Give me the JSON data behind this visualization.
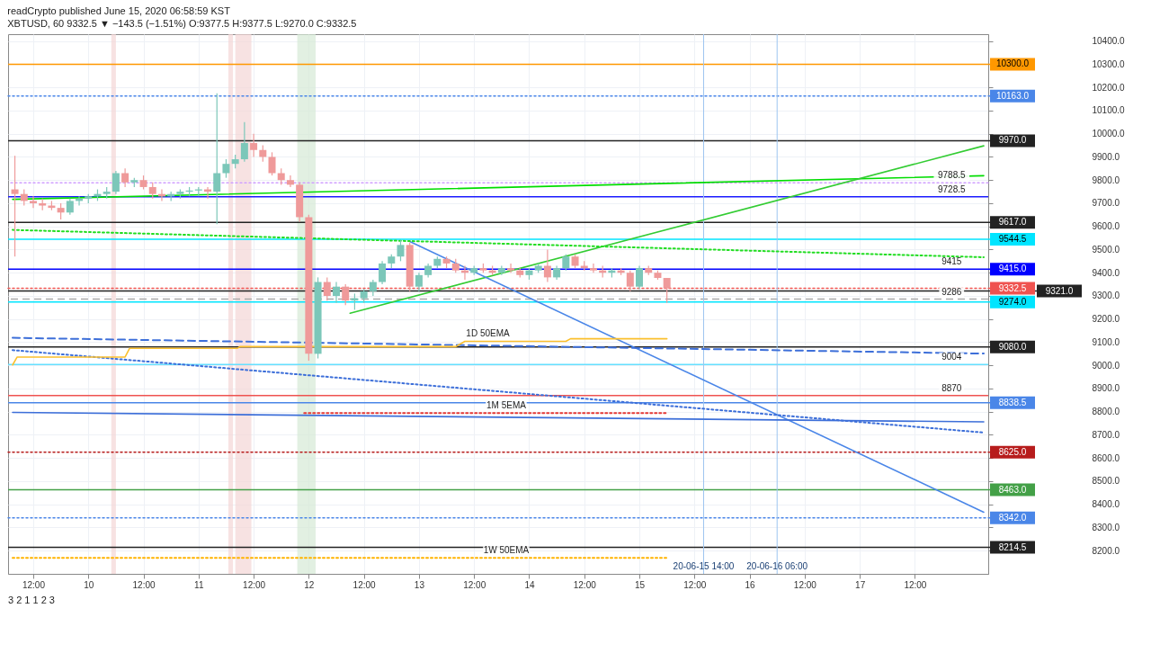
{
  "chart_data": {
    "type": "candlestick",
    "title": "readCrypto published June 15, 2020 06:58:59 KST",
    "subtitle": "XBTUSD, 60 9332.5 ▼ −143.5 (−1.51%) O:9377.5 H:9377.5 L:9270.0 C:9332.5",
    "x": [
      "2020-06-09T08:00",
      "2020-06-09T10:00",
      "2020-06-09T12:00",
      "2020-06-09T14:00",
      "2020-06-09T16:00",
      "2020-06-09T18:00",
      "2020-06-09T20:00",
      "2020-06-09T22:00",
      "2020-06-10T00:00",
      "2020-06-10T02:00",
      "2020-06-10T04:00",
      "2020-06-10T06:00",
      "2020-06-10T08:00",
      "2020-06-10T10:00",
      "2020-06-10T12:00",
      "2020-06-10T14:00",
      "2020-06-10T16:00",
      "2020-06-10T18:00",
      "2020-06-10T20:00",
      "2020-06-10T22:00",
      "2020-06-11T00:00",
      "2020-06-11T02:00",
      "2020-06-11T04:00",
      "2020-06-11T06:00",
      "2020-06-11T08:00",
      "2020-06-11T10:00",
      "2020-06-11T12:00",
      "2020-06-11T14:00",
      "2020-06-11T16:00",
      "2020-06-11T18:00",
      "2020-06-11T20:00",
      "2020-06-11T22:00",
      "2020-06-12T00:00",
      "2020-06-12T02:00",
      "2020-06-12T04:00",
      "2020-06-12T06:00",
      "2020-06-12T08:00",
      "2020-06-12T10:00",
      "2020-06-12T12:00",
      "2020-06-12T14:00",
      "2020-06-12T16:00",
      "2020-06-12T18:00",
      "2020-06-12T20:00",
      "2020-06-12T22:00",
      "2020-06-13T00:00",
      "2020-06-13T02:00",
      "2020-06-13T04:00",
      "2020-06-13T06:00",
      "2020-06-13T08:00",
      "2020-06-13T10:00",
      "2020-06-13T12:00",
      "2020-06-13T14:00",
      "2020-06-13T16:00",
      "2020-06-13T18:00",
      "2020-06-13T20:00",
      "2020-06-13T22:00",
      "2020-06-14T00:00",
      "2020-06-14T02:00",
      "2020-06-14T04:00",
      "2020-06-14T06:00",
      "2020-06-14T08:00",
      "2020-06-14T10:00",
      "2020-06-14T12:00",
      "2020-06-14T14:00",
      "2020-06-14T16:00",
      "2020-06-14T18:00",
      "2020-06-14T20:00",
      "2020-06-14T22:00",
      "2020-06-15T00:00",
      "2020-06-15T02:00",
      "2020-06-15T04:00",
      "2020-06-15T06:00"
    ],
    "ohlc": [
      [
        9760,
        9905,
        9470,
        9740
      ],
      [
        9740,
        9760,
        9690,
        9710
      ],
      [
        9710,
        9730,
        9680,
        9700
      ],
      [
        9700,
        9720,
        9670,
        9690
      ],
      [
        9690,
        9710,
        9670,
        9680
      ],
      [
        9680,
        9700,
        9630,
        9660
      ],
      [
        9660,
        9720,
        9650,
        9710
      ],
      [
        9710,
        9730,
        9690,
        9720
      ],
      [
        9720,
        9740,
        9700,
        9730
      ],
      [
        9730,
        9760,
        9710,
        9740
      ],
      [
        9740,
        9770,
        9720,
        9750
      ],
      [
        9750,
        9840,
        9740,
        9830
      ],
      [
        9830,
        9850,
        9770,
        9790
      ],
      [
        9790,
        9810,
        9770,
        9800
      ],
      [
        9800,
        9820,
        9760,
        9770
      ],
      [
        9770,
        9790,
        9720,
        9740
      ],
      [
        9740,
        9760,
        9710,
        9730
      ],
      [
        9730,
        9750,
        9710,
        9740
      ],
      [
        9740,
        9760,
        9720,
        9750
      ],
      [
        9750,
        9770,
        9730,
        9755
      ],
      [
        9755,
        9770,
        9730,
        9760
      ],
      [
        9760,
        9770,
        9720,
        9750
      ],
      [
        9750,
        10175,
        9610,
        9830
      ],
      [
        9830,
        9890,
        9810,
        9870
      ],
      [
        9870,
        9910,
        9850,
        9890
      ],
      [
        9890,
        10050,
        9880,
        9960
      ],
      [
        9960,
        10000,
        9900,
        9930
      ],
      [
        9930,
        9950,
        9880,
        9900
      ],
      [
        9900,
        9920,
        9820,
        9830
      ],
      [
        9830,
        9850,
        9780,
        9800
      ],
      [
        9800,
        9820,
        9770,
        9780
      ],
      [
        9780,
        9790,
        9620,
        9640
      ],
      [
        9640,
        9650,
        9020,
        9050
      ],
      [
        9050,
        9380,
        9030,
        9360
      ],
      [
        9360,
        9380,
        9280,
        9300
      ],
      [
        9300,
        9360,
        9270,
        9340
      ],
      [
        9340,
        9350,
        9260,
        9280
      ],
      [
        9280,
        9310,
        9240,
        9290
      ],
      [
        9290,
        9330,
        9270,
        9320
      ],
      [
        9320,
        9370,
        9300,
        9360
      ],
      [
        9360,
        9450,
        9350,
        9440
      ],
      [
        9440,
        9480,
        9420,
        9470
      ],
      [
        9470,
        9540,
        9450,
        9520
      ],
      [
        9520,
        9530,
        9320,
        9340
      ],
      [
        9340,
        9400,
        9320,
        9390
      ],
      [
        9390,
        9440,
        9380,
        9430
      ],
      [
        9430,
        9470,
        9420,
        9460
      ],
      [
        9460,
        9470,
        9420,
        9440
      ],
      [
        9440,
        9460,
        9400,
        9410
      ],
      [
        9410,
        9430,
        9370,
        9400
      ],
      [
        9400,
        9430,
        9390,
        9420
      ],
      [
        9420,
        9440,
        9400,
        9410
      ],
      [
        9410,
        9430,
        9390,
        9400
      ],
      [
        9400,
        9430,
        9390,
        9420
      ],
      [
        9420,
        9440,
        9400,
        9410
      ],
      [
        9410,
        9420,
        9380,
        9390
      ],
      [
        9390,
        9420,
        9370,
        9410
      ],
      [
        9410,
        9440,
        9400,
        9430
      ],
      [
        9430,
        9500,
        9360,
        9380
      ],
      [
        9380,
        9430,
        9370,
        9420
      ],
      [
        9420,
        9480,
        9410,
        9470
      ],
      [
        9470,
        9480,
        9420,
        9430
      ],
      [
        9430,
        9450,
        9410,
        9420
      ],
      [
        9420,
        9440,
        9400,
        9410
      ],
      [
        9410,
        9430,
        9380,
        9400
      ],
      [
        9400,
        9420,
        9380,
        9410
      ],
      [
        9410,
        9420,
        9390,
        9400
      ],
      [
        9400,
        9410,
        9320,
        9340
      ],
      [
        9340,
        9430,
        9330,
        9420
      ],
      [
        9420,
        9430,
        9390,
        9400
      ],
      [
        9400,
        9410,
        9370,
        9377.5
      ],
      [
        9377.5,
        9377.5,
        9270,
        9332.5
      ]
    ],
    "colors": [
      "#ef9a9a",
      "#ef9a9a",
      "#ef9a9a",
      "#ef9a9a",
      "#ef9a9a",
      "#ef9a9a",
      "#7cc7b9",
      "#7cc7b9",
      "#7cc7b9",
      "#7cc7b9",
      "#7cc7b9",
      "#7cc7b9",
      "#ef9a9a",
      "#7cc7b9",
      "#ef9a9a",
      "#ef9a9a",
      "#ef9a9a",
      "#7cc7b9",
      "#7cc7b9",
      "#7cc7b9",
      "#7cc7b9",
      "#ef9a9a",
      "#7cc7b9",
      "#7cc7b9",
      "#7cc7b9",
      "#7cc7b9",
      "#ef9a9a",
      "#ef9a9a",
      "#ef9a9a",
      "#ef9a9a",
      "#ef9a9a",
      "#ef9a9a",
      "#ef9a9a",
      "#7cc7b9",
      "#ef9a9a",
      "#7cc7b9",
      "#ef9a9a",
      "#7cc7b9",
      "#7cc7b9",
      "#7cc7b9",
      "#7cc7b9",
      "#7cc7b9",
      "#7cc7b9",
      "#ef9a9a",
      "#7cc7b9",
      "#7cc7b9",
      "#7cc7b9",
      "#ef9a9a",
      "#ef9a9a",
      "#ef9a9a",
      "#7cc7b9",
      "#ef9a9a",
      "#ef9a9a",
      "#7cc7b9",
      "#ef9a9a",
      "#ef9a9a",
      "#7cc7b9",
      "#7cc7b9",
      "#ef9a9a",
      "#7cc7b9",
      "#7cc7b9",
      "#ef9a9a",
      "#ef9a9a",
      "#ef9a9a",
      "#ef9a9a",
      "#7cc7b9",
      "#ef9a9a",
      "#ef9a9a",
      "#7cc7b9",
      "#ef9a9a",
      "#ef9a9a",
      "#ef9a9a"
    ],
    "series": [
      {
        "type": "line",
        "color": "#00dd00",
        "x": [
          "2020-06-09T07:30",
          "2020-06-18T03:00"
        ],
        "values": [
          9717,
          9819
        ]
      },
      {
        "type": "line",
        "color": "#33cc33",
        "x": [
          "2020-06-12T09:00",
          "2020-06-18T03:00"
        ],
        "values": [
          9225,
          9948
        ]
      },
      {
        "type": "line",
        "color": "#4a86e8",
        "x": [
          "2020-06-12T22:00",
          "2020-06-18T03:00"
        ],
        "values": [
          9535,
          8366
        ]
      },
      {
        "type": "line",
        "color": "#3d6fd9",
        "x": [
          "2020-06-09T07:30",
          "2020-06-18T03:00"
        ],
        "values": [
          8797,
          8756
        ]
      },
      {
        "type": "line",
        "color": "#3d6fd9",
        "line_style": "dashed",
        "x": [
          "2020-06-09T07:30",
          "2020-06-18T03:00"
        ],
        "values": [
          9119,
          9051
        ]
      },
      {
        "type": "line",
        "color": "#3d6fd9",
        "line_style": "dotted",
        "x": [
          "2020-06-09T07:30",
          "2020-06-18T03:00"
        ],
        "values": [
          9066,
          8710
        ]
      },
      {
        "type": "line",
        "color": "#22dd22",
        "line_style": "dotted",
        "x": [
          "2020-06-09T07:30",
          "2020-06-18T03:00"
        ],
        "values": [
          9585,
          9467
        ]
      },
      {
        "type": "line",
        "color": "#ffb300",
        "line_style": "dotted",
        "x": [
          "2020-06-09T07:30",
          "2020-06-15T06:00"
        ],
        "values": [
          8169,
          8169
        ]
      },
      {
        "type": "line",
        "color": "#e53935",
        "line_style": "dotted",
        "x": [
          "2020-06-11T23:00",
          "2020-06-15T06:00"
        ],
        "values": [
          8794,
          8794
        ]
      },
      {
        "type": "line",
        "color": "#fbc02d",
        "x": [
          "2020-06-09T07:30",
          "2020-06-09T08:30",
          "2020-06-10T08:00",
          "2020-06-10T09:00",
          "2020-06-11T08:30",
          "2020-06-11T09:00",
          "2020-06-13T08:00",
          "2020-06-13T10:00",
          "2020-06-14T08:00",
          "2020-06-14T09:00",
          "2020-06-15T06:00"
        ],
        "values": [
          9002,
          9036,
          9036,
          9074,
          9074,
          9081,
          9081,
          9104,
          9104,
          9115,
          9115
        ]
      }
    ],
    "ref_lines": [
      {
        "axis": "y",
        "value": 10300,
        "label": "10300.0",
        "color": "#ff9800"
      },
      {
        "axis": "y",
        "value": 10163,
        "label": "10163.0",
        "color": "#4a86e8",
        "line_style": "dotted"
      },
      {
        "axis": "y",
        "value": 9970,
        "label": "9970.0",
        "color": "#222222"
      },
      {
        "axis": "y",
        "value": 9788.5,
        "color": "#d0a0ff",
        "line_style": "dotted"
      },
      {
        "axis": "y",
        "value": 9728.5,
        "color": "#1a1aff"
      },
      {
        "axis": "y",
        "value": 9617,
        "label": "9617.0",
        "color": "#222222"
      },
      {
        "axis": "y",
        "value": 9544.5,
        "label": "9544.5",
        "color": "#00e5ff"
      },
      {
        "axis": "y",
        "value": 9415,
        "label": "9415.0",
        "color": "#0000ff"
      },
      {
        "axis": "y",
        "value": 9332.5,
        "label": "9332.5",
        "color": "#ef5350",
        "line_style": "dotted"
      },
      {
        "axis": "y",
        "value": 9321,
        "label": "9321.0",
        "color": "#222222"
      },
      {
        "axis": "y",
        "value": 9286,
        "color": "#aaaaaa",
        "line_style": "dashed"
      },
      {
        "axis": "y",
        "value": 9274,
        "label": "9274.0",
        "color": "#00e5ff"
      },
      {
        "axis": "y",
        "value": 9080,
        "label": "9080.0",
        "color": "#222222"
      },
      {
        "axis": "y",
        "value": 9004,
        "color": "#66e0ff"
      },
      {
        "axis": "y",
        "value": 8870,
        "color": "#ef5350"
      },
      {
        "axis": "y",
        "value": 8838.5,
        "label": "8838.5",
        "color": "#4a86e8"
      },
      {
        "axis": "y",
        "value": 8625,
        "label": "8625.0",
        "color": "#b71c1c",
        "line_style": "dotted"
      },
      {
        "axis": "y",
        "value": 8463,
        "label": "8463.0",
        "color": "#43a047"
      },
      {
        "axis": "y",
        "value": 8342,
        "label": "8342.0",
        "color": "#4a86e8",
        "line_style": "dotted"
      },
      {
        "axis": "y",
        "value": 8214.5,
        "label": "8214.5",
        "color": "#222222"
      },
      {
        "axis": "x",
        "value": "2020-06-15T14:00",
        "label": "20-06-15  14:00",
        "color": "#9ec5f0"
      },
      {
        "axis": "x",
        "value": "2020-06-16T06:00",
        "label": "20-06-16  06:00",
        "color": "#9ec5f0"
      }
    ],
    "bands": [
      {
        "axis": "x",
        "from": "2020-06-10T05:00",
        "to": "2020-06-10T06:00",
        "color": "#f3d6d6"
      },
      {
        "axis": "x",
        "from": "2020-06-11T06:30",
        "to": "2020-06-11T07:30",
        "color": "#f3d6d6"
      },
      {
        "axis": "x",
        "from": "2020-06-11T08:00",
        "to": "2020-06-11T11:30",
        "color": "#f3d6d6"
      },
      {
        "axis": "x",
        "from": "2020-06-11T21:30",
        "to": "2020-06-12T01:30",
        "color": "#d5ead5"
      }
    ],
    "annotations": [
      "3",
      "2",
      "1",
      "1",
      "2",
      "3",
      {
        "text": "1D 50EMA",
        "x": "2020-06-13T15:00",
        "y": 9104
      },
      {
        "text": "1M 5EMA",
        "x": "2020-06-13T19:00",
        "y": 8794
      },
      {
        "text": "1W 50EMA",
        "x": "2020-06-13T19:00",
        "y": 8169
      },
      {
        "text": "9788.5",
        "x": "2020-06-17T20:00",
        "y": 9788.5
      },
      {
        "text": "9728.5",
        "x": "2020-06-17T20:00",
        "y": 9728.5
      },
      {
        "text": "9415",
        "x": "2020-06-17T20:00",
        "y": 9415
      },
      {
        "text": "9286",
        "x": "2020-06-17T20:00",
        "y": 9286
      },
      {
        "text": "9004",
        "x": "2020-06-17T20:00",
        "y": 9004
      },
      {
        "text": "8870",
        "x": "2020-06-17T20:00",
        "y": 8870
      }
    ],
    "xlim": [
      "2020-06-09T07:30",
      "2020-06-18T03:00"
    ],
    "xticks": [
      {
        "value": "2020-06-09T12:00",
        "label": "12:00"
      },
      {
        "value": "2020-06-10T00:00",
        "label": "10"
      },
      {
        "value": "2020-06-10T12:00",
        "label": "12:00"
      },
      {
        "value": "2020-06-11T00:00",
        "label": "11"
      },
      {
        "value": "2020-06-11T12:00",
        "label": "12:00"
      },
      {
        "value": "2020-06-12T00:00",
        "label": "12"
      },
      {
        "value": "2020-06-12T12:00",
        "label": "12:00"
      },
      {
        "value": "2020-06-13T00:00",
        "label": "13"
      },
      {
        "value": "2020-06-13T12:00",
        "label": "12:00"
      },
      {
        "value": "2020-06-14T00:00",
        "label": "14"
      },
      {
        "value": "2020-06-14T12:00",
        "label": "12:00"
      },
      {
        "value": "2020-06-15T00:00",
        "label": "15"
      },
      {
        "value": "2020-06-15T12:00",
        "label": "12:00"
      },
      {
        "value": "2020-06-16T00:00",
        "label": "16"
      },
      {
        "value": "2020-06-16T12:00",
        "label": "12:00"
      },
      {
        "value": "2020-06-17T00:00",
        "label": "17"
      },
      {
        "value": "2020-06-17T12:00",
        "label": "12:00"
      }
    ],
    "ylim": [
      8100,
      10430
    ],
    "yticks": [
      {
        "value": 8200,
        "label": "8200.0"
      },
      {
        "value": 8300,
        "label": "8300.0"
      },
      {
        "value": 8400,
        "label": "8400.0"
      },
      {
        "value": 8500,
        "label": "8500.0"
      },
      {
        "value": 8600,
        "label": "8600.0"
      },
      {
        "value": 8700,
        "label": "8700.0"
      },
      {
        "value": 8800,
        "label": "8800.0"
      },
      {
        "value": 8900,
        "label": "8900.0"
      },
      {
        "value": 9000,
        "label": "9000.0"
      },
      {
        "value": 9100,
        "label": "9100.0"
      },
      {
        "value": 9200,
        "label": "9200.0"
      },
      {
        "value": 9300,
        "label": "9300.0"
      },
      {
        "value": 9400,
        "label": "9400.0"
      },
      {
        "value": 9500,
        "label": "9500.0"
      },
      {
        "value": 9600,
        "label": "9600.0"
      },
      {
        "value": 9700,
        "label": "9700.0"
      },
      {
        "value": 9800,
        "label": "9800.0"
      },
      {
        "value": 9900,
        "label": "9900.0"
      },
      {
        "value": 10000,
        "label": "10000.0"
      },
      {
        "value": 10100,
        "label": "10100.0"
      },
      {
        "value": 10200,
        "label": "10200.0"
      },
      {
        "value": 10300,
        "label": "10300.0"
      },
      {
        "value": 10400,
        "label": "10400.0"
      }
    ],
    "grid": true
  }
}
